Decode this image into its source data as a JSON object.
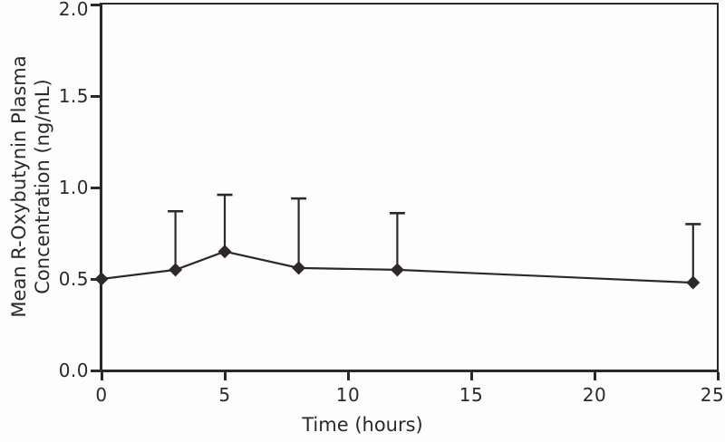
{
  "figure": {
    "background": "#fdfdfd",
    "line_color": "#2d292a",
    "text_color": "#2d292a"
  },
  "chart_data": {
    "type": "line",
    "title": "",
    "xlabel": "Time (hours)",
    "ylabel": "Mean R-Oxybutynin Plasma Concentration (ng/mL)",
    "ylabel_lines": [
      "Mean R-Oxybutynin Plasma",
      "Concentration (ng/mL)"
    ],
    "x": [
      0,
      3,
      5,
      8,
      12,
      24
    ],
    "series": [
      {
        "name": "Mean R-Oxybutynin Plasma Concentration (ng/mL)",
        "values": [
          0.5,
          0.55,
          0.65,
          0.56,
          0.55,
          0.48
        ],
        "error_upper": [
          null,
          0.32,
          0.31,
          0.38,
          0.31,
          0.32
        ],
        "marker": "diamond",
        "error_bars": "upper-only"
      }
    ],
    "xlim": [
      0,
      25
    ],
    "ylim": [
      0,
      2.0
    ],
    "x_ticks": [
      0,
      5,
      10,
      15,
      20,
      25
    ],
    "x_tick_labels": [
      "0",
      "5",
      "10",
      "15",
      "20",
      "25"
    ],
    "y_ticks": [
      0,
      0.5,
      1.0,
      1.5,
      2.0
    ],
    "y_tick_labels": [
      "0.0",
      "0.5",
      "1.0",
      "1.5",
      "2.0"
    ],
    "grid": false,
    "legend": "none"
  }
}
